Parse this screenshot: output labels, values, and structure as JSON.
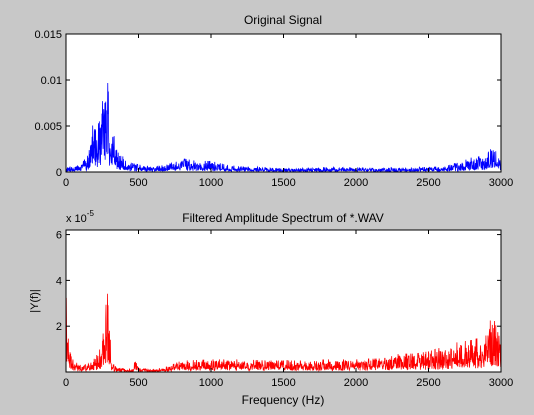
{
  "figure": {
    "background": "#c8c8c8"
  },
  "chart_data": [
    {
      "type": "line",
      "title": "Original Signal",
      "xlabel": "",
      "ylabel": "",
      "xlim": [
        0,
        3000
      ],
      "ylim": [
        0,
        0.015
      ],
      "xticks": [
        0,
        500,
        1000,
        1500,
        2000,
        2500,
        3000
      ],
      "yticks": [
        0,
        0.005,
        0.01,
        0.015
      ],
      "xtick_labels": [
        "0",
        "500",
        "1000",
        "1500",
        "2000",
        "2500",
        "3000"
      ],
      "ytick_labels": [
        "0",
        "0.005",
        "0.01",
        "0.015"
      ],
      "grid": false,
      "series": [
        {
          "color": "#0000ff",
          "envelope": {
            "x": [
              0,
              20,
              50,
              100,
              150,
              180,
              200,
              230,
              260,
              280,
              290,
              300,
              310,
              330,
              360,
              400,
              450,
              500,
              600,
              700,
              750,
              800,
              900,
              950,
              1000,
              1100,
              1200,
              1400,
              1600,
              1800,
              2000,
              2200,
              2400,
              2600,
              2700,
              2800,
              2900,
              2950,
              3000
            ],
            "y": [
              0.0004,
              0.0006,
              0.0006,
              0.0008,
              0.0018,
              0.0052,
              0.0045,
              0.0055,
              0.0085,
              0.0095,
              0.0112,
              0.0065,
              0.005,
              0.004,
              0.0025,
              0.0015,
              0.001,
              0.0008,
              0.0006,
              0.0008,
              0.0012,
              0.0015,
              0.0012,
              0.0012,
              0.0012,
              0.0008,
              0.0006,
              0.0005,
              0.0004,
              0.0005,
              0.0005,
              0.0004,
              0.0005,
              0.0006,
              0.001,
              0.0016,
              0.0018,
              0.003,
              0.0015
            ]
          }
        }
      ]
    },
    {
      "type": "line",
      "title": "Filtered Amplitude Spectrum of *.WAV",
      "xlabel": "Frequency (Hz)",
      "ylabel": "|Y(f)|",
      "exponent_label": "x 10",
      "exponent_power": "-5",
      "xlim": [
        0,
        3000
      ],
      "ylim": [
        0,
        6.2
      ],
      "xticks": [
        0,
        500,
        1000,
        1500,
        2000,
        2500,
        3000
      ],
      "yticks": [
        2,
        4,
        6
      ],
      "xtick_labels": [
        "0",
        "500",
        "1000",
        "1500",
        "2000",
        "2500",
        "3000"
      ],
      "ytick_labels": [
        "2",
        "4",
        "6"
      ],
      "grid": false,
      "series": [
        {
          "color": "#ff0000",
          "envelope": {
            "x": [
              0,
              10,
              20,
              50,
              100,
              150,
              200,
              250,
              270,
              280,
              290,
              300,
              320,
              350,
              400,
              460,
              480,
              500,
              600,
              700,
              800,
              1000,
              1200,
              1400,
              1600,
              1800,
              2000,
              2200,
              2300,
              2400,
              2500,
              2600,
              2700,
              2800,
              2900,
              2940,
              2970,
              3000
            ],
            "y": [
              5.2,
              3.0,
              1.2,
              0.5,
              0.3,
              0.4,
              0.6,
              1.2,
              2.8,
              4.1,
              3.7,
              1.8,
              0.5,
              0.2,
              0.15,
              0.15,
              0.6,
              0.2,
              0.1,
              0.25,
              0.5,
              0.55,
              0.55,
              0.5,
              0.5,
              0.55,
              0.55,
              0.6,
              0.8,
              0.8,
              0.9,
              1.1,
              1.3,
              1.4,
              1.6,
              2.6,
              1.9,
              1.3
            ]
          }
        }
      ]
    }
  ]
}
